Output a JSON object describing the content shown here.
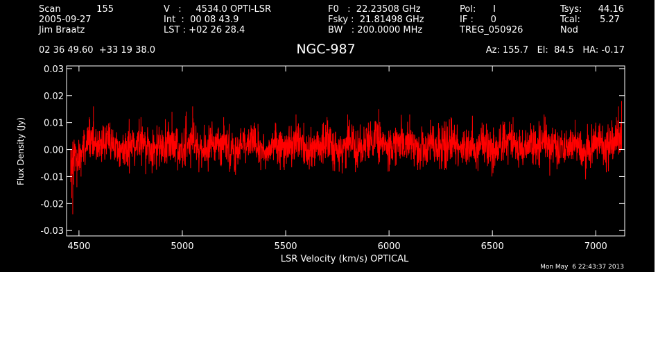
{
  "header": {
    "col1": [
      "Scan",
      "2005-09-27",
      "Jim Braatz"
    ],
    "scan_number": "155",
    "col2": [
      "V   :     4534.0 OPTI-LSR",
      "Int  :  00 08 43.9",
      "LST : +02 26 28.4"
    ],
    "col3": [
      "F0   :  22.23508 GHz",
      "Fsky :  21.81498 GHz",
      "BW   : 200.0000 MHz"
    ],
    "col4": [
      "Pol:      I",
      "IF :      0",
      "TREG_050926"
    ],
    "col5": [
      "Tsys:",
      "Tcal:",
      "Nod"
    ],
    "col5_values": [
      "44.16",
      "5.27",
      ""
    ],
    "coords": "02 36 49.60  +33 19 38.0",
    "source": "NGC-987",
    "azelha": "Az: 155.7   El:  84.5   HA: -0.17",
    "timestamp": "Mon May  6 22:43:37 2013"
  },
  "chart_data": {
    "type": "line",
    "xlabel": "LSR Velocity (km/s) OPTICAL",
    "ylabel": "Flux Density (Jy)",
    "xlim": [
      4440,
      7140
    ],
    "ylim": [
      -0.032,
      0.031
    ],
    "xticks": [
      4500,
      5000,
      5500,
      6000,
      6500,
      7000
    ],
    "xticklabels": [
      "4500",
      "5000",
      "5500",
      "6000",
      "6500",
      "7000"
    ],
    "yticks": [
      -0.03,
      -0.02,
      -0.01,
      0.0,
      0.01,
      0.02,
      0.03
    ],
    "yticklabels": [
      "-0.03",
      "-0.02",
      "-0.01",
      "0.00",
      "0.01",
      "0.02",
      "0.03"
    ],
    "grid": false,
    "series": [
      {
        "color": "#ff0000",
        "x": [
          4460,
          4465,
          4470,
          4475,
          4480,
          4490,
          4500,
          4510,
          4520,
          4530,
          4540,
          4550,
          4570,
          4600,
          4650,
          4700,
          4750,
          4800,
          4850,
          4900,
          4950,
          5000,
          5050,
          5100,
          5150,
          5200,
          5250,
          5300,
          5350,
          5400,
          5450,
          5500,
          5550,
          5600,
          5650,
          5700,
          5750,
          5800,
          5850,
          5900,
          5950,
          6000,
          6050,
          6100,
          6150,
          6200,
          6250,
          6300,
          6350,
          6400,
          6450,
          6500,
          6550,
          6600,
          6650,
          6700,
          6750,
          6800,
          6850,
          6900,
          6950,
          7000,
          7050,
          7080,
          7100,
          7110,
          7120,
          7125
        ],
        "y": [
          -0.012,
          -0.018,
          -0.024,
          -0.013,
          -0.008,
          -0.014,
          -0.006,
          -0.01,
          0.005,
          -0.002,
          0.008,
          0.012,
          0.016,
          0.002,
          0.01,
          -0.004,
          0.006,
          0.012,
          -0.002,
          0.004,
          0.014,
          0.0,
          0.016,
          -0.003,
          0.005,
          0.012,
          -0.004,
          0.008,
          0.01,
          -0.002,
          0.01,
          0.0,
          0.013,
          -0.004,
          0.005,
          0.012,
          -0.003,
          0.013,
          0.003,
          0.01,
          0.015,
          0.0,
          0.006,
          0.013,
          -0.004,
          0.011,
          0.002,
          0.012,
          -0.003,
          0.007,
          0.01,
          0.0,
          0.006,
          0.012,
          -0.002,
          0.009,
          0.013,
          0.0,
          0.006,
          0.011,
          -0.003,
          0.01,
          -0.003,
          0.006,
          0.012,
          0.016,
          0.01,
          0.018
        ]
      }
    ]
  }
}
